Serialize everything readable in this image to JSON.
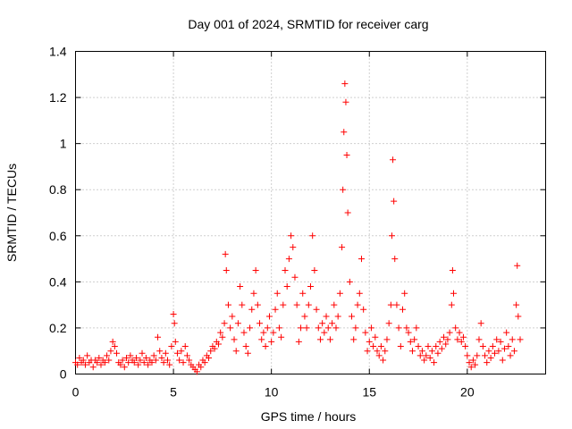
{
  "chart_data": {
    "type": "scatter",
    "title": "Day 001 of 2024, SRMTID for receiver carg",
    "xlabel": "GPS time / hours",
    "ylabel": "SRMTID / TECUs",
    "xlim": [
      0,
      24
    ],
    "ylim": [
      0,
      1.4
    ],
    "xticks": [
      0,
      5,
      10,
      15,
      20
    ],
    "xtick_labels": [
      "0",
      "5",
      "10",
      "15",
      "20"
    ],
    "yticks": [
      0,
      0.2,
      0.4,
      0.6,
      0.8,
      1.0,
      1.2,
      1.4
    ],
    "ytick_labels": [
      "0",
      "0.2",
      "0.4",
      "0.6",
      "0.8",
      "1",
      "1.2",
      "1.4"
    ],
    "grid": true,
    "marker": "plus",
    "marker_color": "#ff0000",
    "series": [
      {
        "name": "SRMTID",
        "points": [
          [
            0.0,
            0.05
          ],
          [
            0.1,
            0.04
          ],
          [
            0.2,
            0.07
          ],
          [
            0.3,
            0.05
          ],
          [
            0.4,
            0.06
          ],
          [
            0.5,
            0.04
          ],
          [
            0.6,
            0.08
          ],
          [
            0.7,
            0.05
          ],
          [
            0.8,
            0.06
          ],
          [
            0.9,
            0.03
          ],
          [
            1.0,
            0.06
          ],
          [
            1.1,
            0.05
          ],
          [
            1.2,
            0.07
          ],
          [
            1.3,
            0.04
          ],
          [
            1.4,
            0.06
          ],
          [
            1.5,
            0.05
          ],
          [
            1.6,
            0.08
          ],
          [
            1.7,
            0.06
          ],
          [
            1.8,
            0.1
          ],
          [
            1.9,
            0.14
          ],
          [
            2.0,
            0.12
          ],
          [
            2.1,
            0.09
          ],
          [
            2.2,
            0.05
          ],
          [
            2.3,
            0.04
          ],
          [
            2.4,
            0.06
          ],
          [
            2.5,
            0.03
          ],
          [
            2.6,
            0.07
          ],
          [
            2.7,
            0.05
          ],
          [
            2.8,
            0.08
          ],
          [
            2.9,
            0.06
          ],
          [
            3.0,
            0.05
          ],
          [
            3.1,
            0.07
          ],
          [
            3.2,
            0.04
          ],
          [
            3.3,
            0.06
          ],
          [
            3.4,
            0.09
          ],
          [
            3.5,
            0.05
          ],
          [
            3.6,
            0.07
          ],
          [
            3.7,
            0.04
          ],
          [
            3.8,
            0.06
          ],
          [
            3.9,
            0.05
          ],
          [
            4.0,
            0.08
          ],
          [
            4.1,
            0.06
          ],
          [
            4.2,
            0.16
          ],
          [
            4.3,
            0.1
          ],
          [
            4.4,
            0.07
          ],
          [
            4.5,
            0.05
          ],
          [
            4.6,
            0.09
          ],
          [
            4.7,
            0.06
          ],
          [
            4.8,
            0.04
          ],
          [
            4.9,
            0.12
          ],
          [
            5.0,
            0.26
          ],
          [
            5.05,
            0.22
          ],
          [
            5.1,
            0.14
          ],
          [
            5.2,
            0.09
          ],
          [
            5.3,
            0.06
          ],
          [
            5.4,
            0.1
          ],
          [
            5.5,
            0.05
          ],
          [
            5.6,
            0.12
          ],
          [
            5.7,
            0.08
          ],
          [
            5.8,
            0.06
          ],
          [
            5.9,
            0.04
          ],
          [
            6.0,
            0.03
          ],
          [
            6.1,
            0.02
          ],
          [
            6.2,
            0.01
          ],
          [
            6.3,
            0.04
          ],
          [
            6.4,
            0.03
          ],
          [
            6.5,
            0.06
          ],
          [
            6.6,
            0.05
          ],
          [
            6.7,
            0.08
          ],
          [
            6.8,
            0.07
          ],
          [
            6.9,
            0.1
          ],
          [
            7.0,
            0.12
          ],
          [
            7.1,
            0.11
          ],
          [
            7.2,
            0.14
          ],
          [
            7.3,
            0.13
          ],
          [
            7.4,
            0.18
          ],
          [
            7.5,
            0.16
          ],
          [
            7.6,
            0.22
          ],
          [
            7.65,
            0.52
          ],
          [
            7.7,
            0.45
          ],
          [
            7.8,
            0.3
          ],
          [
            7.9,
            0.2
          ],
          [
            8.0,
            0.25
          ],
          [
            8.1,
            0.15
          ],
          [
            8.2,
            0.1
          ],
          [
            8.3,
            0.22
          ],
          [
            8.4,
            0.38
          ],
          [
            8.5,
            0.3
          ],
          [
            8.6,
            0.18
          ],
          [
            8.7,
            0.12
          ],
          [
            8.8,
            0.09
          ],
          [
            8.9,
            0.2
          ],
          [
            9.0,
            0.28
          ],
          [
            9.1,
            0.35
          ],
          [
            9.2,
            0.45
          ],
          [
            9.3,
            0.3
          ],
          [
            9.4,
            0.22
          ],
          [
            9.5,
            0.15
          ],
          [
            9.6,
            0.18
          ],
          [
            9.7,
            0.12
          ],
          [
            9.8,
            0.2
          ],
          [
            9.9,
            0.25
          ],
          [
            10.0,
            0.14
          ],
          [
            10.1,
            0.18
          ],
          [
            10.2,
            0.28
          ],
          [
            10.3,
            0.35
          ],
          [
            10.4,
            0.2
          ],
          [
            10.5,
            0.16
          ],
          [
            10.6,
            0.3
          ],
          [
            10.7,
            0.45
          ],
          [
            10.8,
            0.38
          ],
          [
            10.9,
            0.5
          ],
          [
            11.0,
            0.6
          ],
          [
            11.1,
            0.55
          ],
          [
            11.2,
            0.42
          ],
          [
            11.3,
            0.3
          ],
          [
            11.4,
            0.14
          ],
          [
            11.5,
            0.2
          ],
          [
            11.6,
            0.35
          ],
          [
            11.7,
            0.25
          ],
          [
            11.8,
            0.2
          ],
          [
            11.9,
            0.3
          ],
          [
            12.0,
            0.38
          ],
          [
            12.1,
            0.6
          ],
          [
            12.2,
            0.45
          ],
          [
            12.3,
            0.28
          ],
          [
            12.4,
            0.2
          ],
          [
            12.5,
            0.15
          ],
          [
            12.6,
            0.22
          ],
          [
            12.7,
            0.18
          ],
          [
            12.8,
            0.25
          ],
          [
            12.9,
            0.2
          ],
          [
            13.0,
            0.15
          ],
          [
            13.1,
            0.22
          ],
          [
            13.2,
            0.3
          ],
          [
            13.3,
            0.2
          ],
          [
            13.4,
            0.25
          ],
          [
            13.5,
            0.35
          ],
          [
            13.6,
            0.55
          ],
          [
            13.65,
            0.8
          ],
          [
            13.7,
            1.05
          ],
          [
            13.75,
            1.26
          ],
          [
            13.8,
            1.18
          ],
          [
            13.85,
            0.95
          ],
          [
            13.9,
            0.7
          ],
          [
            14.0,
            0.4
          ],
          [
            14.1,
            0.25
          ],
          [
            14.2,
            0.15
          ],
          [
            14.3,
            0.2
          ],
          [
            14.4,
            0.3
          ],
          [
            14.5,
            0.35
          ],
          [
            14.6,
            0.5
          ],
          [
            14.7,
            0.28
          ],
          [
            14.8,
            0.18
          ],
          [
            14.9,
            0.1
          ],
          [
            15.0,
            0.14
          ],
          [
            15.1,
            0.2
          ],
          [
            15.2,
            0.12
          ],
          [
            15.3,
            0.16
          ],
          [
            15.4,
            0.1
          ],
          [
            15.5,
            0.08
          ],
          [
            15.6,
            0.12
          ],
          [
            15.7,
            0.06
          ],
          [
            15.8,
            0.1
          ],
          [
            15.9,
            0.15
          ],
          [
            16.0,
            0.22
          ],
          [
            16.1,
            0.3
          ],
          [
            16.15,
            0.6
          ],
          [
            16.2,
            0.93
          ],
          [
            16.25,
            0.75
          ],
          [
            16.3,
            0.5
          ],
          [
            16.4,
            0.3
          ],
          [
            16.5,
            0.2
          ],
          [
            16.6,
            0.12
          ],
          [
            16.7,
            0.28
          ],
          [
            16.8,
            0.35
          ],
          [
            16.9,
            0.2
          ],
          [
            17.0,
            0.18
          ],
          [
            17.1,
            0.14
          ],
          [
            17.2,
            0.1
          ],
          [
            17.3,
            0.15
          ],
          [
            17.4,
            0.2
          ],
          [
            17.5,
            0.12
          ],
          [
            17.6,
            0.08
          ],
          [
            17.7,
            0.1
          ],
          [
            17.8,
            0.06
          ],
          [
            17.9,
            0.08
          ],
          [
            18.0,
            0.12
          ],
          [
            18.1,
            0.07
          ],
          [
            18.2,
            0.1
          ],
          [
            18.3,
            0.05
          ],
          [
            18.4,
            0.12
          ],
          [
            18.5,
            0.09
          ],
          [
            18.6,
            0.14
          ],
          [
            18.7,
            0.11
          ],
          [
            18.8,
            0.16
          ],
          [
            18.9,
            0.13
          ],
          [
            19.0,
            0.15
          ],
          [
            19.1,
            0.18
          ],
          [
            19.2,
            0.3
          ],
          [
            19.25,
            0.45
          ],
          [
            19.3,
            0.35
          ],
          [
            19.4,
            0.2
          ],
          [
            19.5,
            0.15
          ],
          [
            19.6,
            0.18
          ],
          [
            19.7,
            0.14
          ],
          [
            19.8,
            0.16
          ],
          [
            19.9,
            0.12
          ],
          [
            20.0,
            0.08
          ],
          [
            20.1,
            0.05
          ],
          [
            20.2,
            0.03
          ],
          [
            20.3,
            0.06
          ],
          [
            20.4,
            0.04
          ],
          [
            20.5,
            0.08
          ],
          [
            20.6,
            0.15
          ],
          [
            20.7,
            0.22
          ],
          [
            20.8,
            0.12
          ],
          [
            20.9,
            0.08
          ],
          [
            21.0,
            0.05
          ],
          [
            21.1,
            0.1
          ],
          [
            21.2,
            0.07
          ],
          [
            21.3,
            0.12
          ],
          [
            21.4,
            0.09
          ],
          [
            21.5,
            0.15
          ],
          [
            21.6,
            0.1
          ],
          [
            21.7,
            0.14
          ],
          [
            21.8,
            0.06
          ],
          [
            21.9,
            0.11
          ],
          [
            22.0,
            0.18
          ],
          [
            22.1,
            0.12
          ],
          [
            22.2,
            0.08
          ],
          [
            22.3,
            0.15
          ],
          [
            22.4,
            0.1
          ],
          [
            22.5,
            0.3
          ],
          [
            22.55,
            0.47
          ],
          [
            22.6,
            0.25
          ],
          [
            22.7,
            0.15
          ]
        ]
      }
    ]
  }
}
